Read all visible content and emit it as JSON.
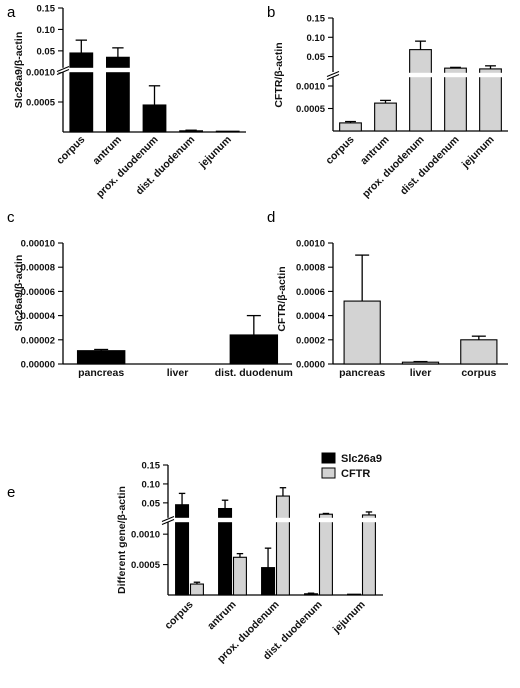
{
  "colors": {
    "slc": "#000000",
    "cftr": "#d3d3d3"
  },
  "chart_data": [
    {
      "panel": "a",
      "type": "bar",
      "ylabel": "Slc26a9/β-actin",
      "categories": [
        "corpus",
        "antrum",
        "prox. duodenum",
        "dist. duodenum",
        "jejunum"
      ],
      "series": [
        {
          "values": [
            0.045,
            0.035,
            0.00045,
            2e-05,
            3e-06
          ],
          "errors": [
            0.03,
            0.022,
            0.00032,
            1e-05,
            2e-06
          ]
        }
      ],
      "color": "slc",
      "broken_axis": true,
      "lower_ylim": [
        0,
        0.001
      ],
      "lower_ticks": [
        "0.0005",
        "0.0010"
      ],
      "upper_ylim": [
        0.01,
        0.15
      ],
      "upper_ticks": [
        "0.05",
        "0.10",
        "0.15"
      ]
    },
    {
      "panel": "b",
      "type": "bar",
      "ylabel": "CFTR/β-actin",
      "categories": [
        "corpus",
        "antrum",
        "prox. duodenum",
        "dist. duodenum",
        "jejunum"
      ],
      "series": [
        {
          "values": [
            0.00018,
            0.00062,
            0.068,
            0.02,
            0.018
          ],
          "errors": [
            3e-05,
            6e-05,
            0.022,
            0.002,
            0.008
          ]
        }
      ],
      "color": "cftr",
      "broken_axis": true,
      "lower_ylim": [
        0,
        0.0012
      ],
      "lower_ticks": [
        "0.0005",
        "0.0010"
      ],
      "upper_ylim": [
        0.01,
        0.15
      ],
      "upper_ticks": [
        "0.05",
        "0.10",
        "0.15"
      ]
    },
    {
      "panel": "c",
      "type": "bar",
      "ylabel": "Slc26a9/β-actin",
      "categories": [
        "pancreas",
        "liver",
        "dist. duodenum"
      ],
      "series": [
        {
          "values": [
            1.1e-05,
            0.0,
            2.4e-05
          ],
          "errors": [
            1e-06,
            0.0,
            1.6e-05
          ]
        }
      ],
      "color": "slc",
      "ylim": [
        0,
        0.0001
      ],
      "yticks": [
        "0.00000",
        "0.00002",
        "0.00004",
        "0.00006",
        "0.00008",
        "0.00010"
      ]
    },
    {
      "panel": "d",
      "type": "bar",
      "ylabel": "CFTR/β-actin",
      "categories": [
        "pancreas",
        "liver",
        "corpus"
      ],
      "series": [
        {
          "values": [
            0.00052,
            1.5e-05,
            0.0002
          ],
          "errors": [
            0.00038,
            5e-06,
            3e-05
          ]
        }
      ],
      "color": "cftr",
      "ylim": [
        0,
        0.001
      ],
      "yticks": [
        "0.0000",
        "0.0002",
        "0.0004",
        "0.0006",
        "0.0008",
        "0.0010"
      ]
    },
    {
      "panel": "e",
      "type": "bar",
      "ylabel": "Different gene/β-actin",
      "categories": [
        "corpus",
        "antrum",
        "prox. duodenum",
        "dist. duodenum",
        "jejunum"
      ],
      "series": [
        {
          "name": "Slc26a9",
          "color": "slc",
          "values": [
            0.045,
            0.035,
            0.00045,
            2e-05,
            3e-06
          ],
          "errors": [
            0.03,
            0.022,
            0.00032,
            1e-05,
            2e-06
          ]
        },
        {
          "name": "CFTR",
          "color": "cftr",
          "values": [
            0.00018,
            0.00062,
            0.068,
            0.02,
            0.018
          ],
          "errors": [
            3e-05,
            6e-05,
            0.022,
            0.002,
            0.008
          ]
        }
      ],
      "broken_axis": true,
      "lower_ylim": [
        0,
        0.0012
      ],
      "lower_ticks": [
        "0.0005",
        "0.0010"
      ],
      "upper_ylim": [
        0.01,
        0.15
      ],
      "upper_ticks": [
        "0.05",
        "0.10",
        "0.15"
      ],
      "legend": "top-right"
    }
  ]
}
